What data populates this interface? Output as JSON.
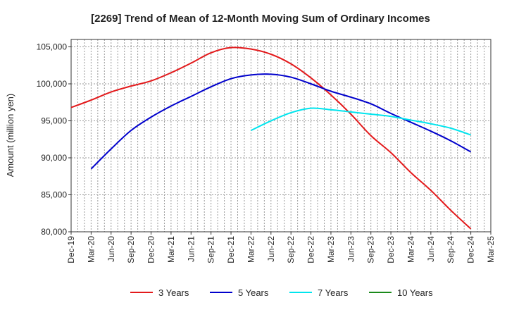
{
  "chart_data": {
    "type": "line",
    "title": "[2269]  Trend of Mean of 12-Month Moving Sum of Ordinary Incomes",
    "xlabel": "",
    "ylabel": "Amount (million yen)",
    "ylim": [
      80000,
      106000
    ],
    "yticks": [
      80000,
      85000,
      90000,
      95000,
      100000,
      105000
    ],
    "ytick_labels": [
      "80,000",
      "85,000",
      "90,000",
      "95,000",
      "100,000",
      "105,000"
    ],
    "categories": [
      "Dec-19",
      "Mar-20",
      "Jun-20",
      "Sep-20",
      "Dec-20",
      "Mar-21",
      "Jun-21",
      "Sep-21",
      "Dec-21",
      "Mar-22",
      "Jun-22",
      "Sep-22",
      "Dec-22",
      "Mar-23",
      "Jun-23",
      "Sep-23",
      "Dec-23",
      "Mar-24",
      "Jun-24",
      "Sep-24",
      "Dec-24",
      "Mar-25"
    ],
    "grid": true,
    "legend_position": "bottom",
    "series": [
      {
        "name": "3 Years",
        "color": "#e31a1c",
        "values": [
          96800,
          97800,
          98900,
          99700,
          100400,
          101500,
          102800,
          104200,
          104900,
          104700,
          104000,
          102700,
          100800,
          98500,
          95900,
          93000,
          90700,
          88000,
          85600,
          82900,
          80400,
          null
        ]
      },
      {
        "name": "5 Years",
        "color": "#0000cc",
        "values": [
          null,
          88500,
          91200,
          93700,
          95500,
          97000,
          98300,
          99600,
          100700,
          101200,
          101300,
          100900,
          100000,
          99000,
          98200,
          97300,
          96000,
          94800,
          93600,
          92300,
          90800,
          null
        ]
      },
      {
        "name": "7 Years",
        "color": "#00e5ee",
        "values": [
          null,
          null,
          null,
          null,
          null,
          null,
          null,
          null,
          null,
          93700,
          95000,
          96100,
          96700,
          96500,
          96200,
          95900,
          95600,
          95100,
          94600,
          94000,
          93100,
          null
        ]
      },
      {
        "name": "10 Years",
        "color": "#1a8a1a",
        "values": [
          null,
          null,
          null,
          null,
          null,
          null,
          null,
          null,
          null,
          null,
          null,
          null,
          null,
          null,
          null,
          null,
          null,
          null,
          null,
          null,
          null,
          null
        ]
      }
    ]
  }
}
